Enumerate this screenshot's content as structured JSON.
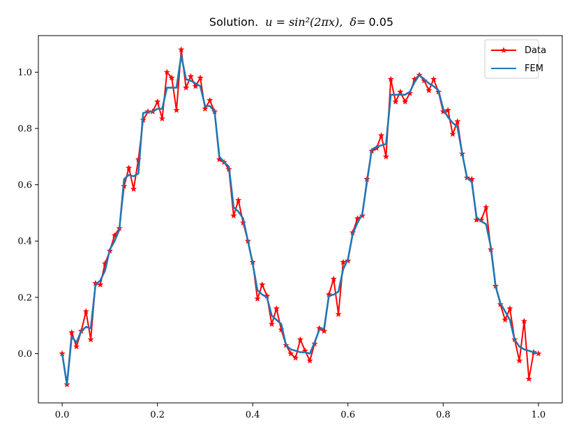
{
  "chart_data": {
    "type": "line",
    "title": {
      "prefix": "Solution.",
      "equation": "u = sin²(2πx),",
      "delta": "δ=",
      "delta_value": "0.05"
    },
    "xlim": [
      -0.05,
      1.05
    ],
    "ylim": [
      -0.175,
      1.13
    ],
    "x_ticks": [
      0.0,
      0.2,
      0.4,
      0.6,
      0.8,
      1.0
    ],
    "x_tick_labels": [
      "0.0",
      "0.2",
      "0.4",
      "0.6",
      "0.8",
      "1.0"
    ],
    "y_ticks": [
      0.0,
      0.2,
      0.4,
      0.6,
      0.8,
      1.0
    ],
    "y_tick_labels": [
      "0.0",
      "0.2",
      "0.4",
      "0.6",
      "0.8",
      "1.0"
    ],
    "legend": {
      "placement": "top-right"
    },
    "series": [
      {
        "name": "Data",
        "color": "#ff0000",
        "marker": "star",
        "x": [
          0.0,
          0.01,
          0.02,
          0.03,
          0.04,
          0.05,
          0.06,
          0.07,
          0.08,
          0.09,
          0.1,
          0.11,
          0.12,
          0.13,
          0.14,
          0.15,
          0.16,
          0.17,
          0.18,
          0.19,
          0.2,
          0.21,
          0.22,
          0.23,
          0.24,
          0.25,
          0.26,
          0.27,
          0.28,
          0.29,
          0.3,
          0.31,
          0.32,
          0.33,
          0.34,
          0.35,
          0.36,
          0.37,
          0.38,
          0.39,
          0.4,
          0.41,
          0.42,
          0.43,
          0.44,
          0.45,
          0.46,
          0.47,
          0.48,
          0.49,
          0.5,
          0.51,
          0.52,
          0.53,
          0.54,
          0.55,
          0.56,
          0.57,
          0.58,
          0.59,
          0.6,
          0.61,
          0.62,
          0.63,
          0.64,
          0.65,
          0.66,
          0.67,
          0.68,
          0.69,
          0.7,
          0.71,
          0.72,
          0.73,
          0.74,
          0.75,
          0.76,
          0.77,
          0.78,
          0.79,
          0.8,
          0.81,
          0.82,
          0.83,
          0.84,
          0.85,
          0.86,
          0.87,
          0.88,
          0.89,
          0.9,
          0.91,
          0.92,
          0.93,
          0.94,
          0.95,
          0.96,
          0.97,
          0.98,
          0.99,
          1.0
        ],
        "y": [
          0.0,
          -0.11,
          0.075,
          0.025,
          0.08,
          0.15,
          0.05,
          0.25,
          0.245,
          0.32,
          0.365,
          0.42,
          0.445,
          0.595,
          0.66,
          0.585,
          0.69,
          0.83,
          0.86,
          0.86,
          0.895,
          0.835,
          1.0,
          0.98,
          0.865,
          1.08,
          0.945,
          0.985,
          0.95,
          0.98,
          0.87,
          0.9,
          0.86,
          0.69,
          0.68,
          0.655,
          0.49,
          0.545,
          0.465,
          0.4,
          0.325,
          0.195,
          0.245,
          0.205,
          0.105,
          0.16,
          0.085,
          0.03,
          0.0,
          -0.015,
          0.05,
          0.01,
          -0.025,
          0.035,
          0.09,
          0.08,
          0.21,
          0.265,
          0.14,
          0.325,
          0.33,
          0.43,
          0.48,
          0.49,
          0.62,
          0.72,
          0.73,
          0.775,
          0.7,
          0.975,
          0.895,
          0.93,
          0.895,
          0.925,
          0.975,
          0.99,
          0.97,
          0.935,
          0.975,
          0.93,
          0.86,
          0.865,
          0.78,
          0.825,
          0.71,
          0.625,
          0.62,
          0.475,
          0.475,
          0.52,
          0.37,
          0.24,
          0.175,
          0.12,
          0.16,
          0.05,
          -0.025,
          0.115,
          -0.09,
          0.005,
          0.0
        ]
      },
      {
        "name": "FEM",
        "color": "#1f77b4",
        "x": [
          0.0,
          0.01,
          0.02,
          0.03,
          0.04,
          0.05,
          0.06,
          0.07,
          0.08,
          0.09,
          0.1,
          0.11,
          0.12,
          0.13,
          0.14,
          0.15,
          0.16,
          0.17,
          0.18,
          0.19,
          0.2,
          0.21,
          0.22,
          0.23,
          0.24,
          0.25,
          0.26,
          0.27,
          0.28,
          0.29,
          0.3,
          0.31,
          0.32,
          0.33,
          0.34,
          0.35,
          0.36,
          0.37,
          0.38,
          0.39,
          0.4,
          0.41,
          0.42,
          0.43,
          0.44,
          0.45,
          0.46,
          0.47,
          0.48,
          0.49,
          0.5,
          0.51,
          0.52,
          0.53,
          0.54,
          0.55,
          0.56,
          0.57,
          0.58,
          0.59,
          0.6,
          0.61,
          0.62,
          0.63,
          0.64,
          0.65,
          0.66,
          0.67,
          0.68,
          0.69,
          0.7,
          0.71,
          0.72,
          0.73,
          0.74,
          0.75,
          0.76,
          0.77,
          0.78,
          0.79,
          0.8,
          0.81,
          0.82,
          0.83,
          0.84,
          0.85,
          0.86,
          0.87,
          0.88,
          0.89,
          0.9,
          0.91,
          0.92,
          0.93,
          0.94,
          0.95,
          0.96,
          0.97,
          0.98,
          0.99,
          1.0
        ],
        "y": [
          0.0,
          -0.11,
          0.06,
          0.04,
          0.08,
          0.095,
          0.09,
          0.245,
          0.26,
          0.295,
          0.37,
          0.4,
          0.44,
          0.62,
          0.635,
          0.63,
          0.64,
          0.855,
          0.86,
          0.86,
          0.87,
          0.87,
          0.945,
          0.945,
          0.945,
          1.06,
          0.975,
          0.97,
          0.96,
          0.95,
          0.88,
          0.88,
          0.86,
          0.7,
          0.68,
          0.665,
          0.52,
          0.505,
          0.48,
          0.4,
          0.32,
          0.225,
          0.21,
          0.2,
          0.135,
          0.12,
          0.105,
          0.03,
          0.015,
          0.01,
          0.005,
          0.005,
          0.0,
          0.04,
          0.085,
          0.09,
          0.205,
          0.21,
          0.22,
          0.3,
          0.335,
          0.425,
          0.465,
          0.495,
          0.61,
          0.725,
          0.735,
          0.74,
          0.745,
          0.92,
          0.92,
          0.92,
          0.92,
          0.93,
          0.965,
          0.99,
          0.975,
          0.96,
          0.95,
          0.935,
          0.87,
          0.84,
          0.82,
          0.805,
          0.71,
          0.625,
          0.61,
          0.485,
          0.47,
          0.46,
          0.38,
          0.24,
          0.18,
          0.15,
          0.12,
          0.05,
          0.025,
          0.015,
          0.01,
          0.005,
          0.0
        ]
      }
    ]
  }
}
